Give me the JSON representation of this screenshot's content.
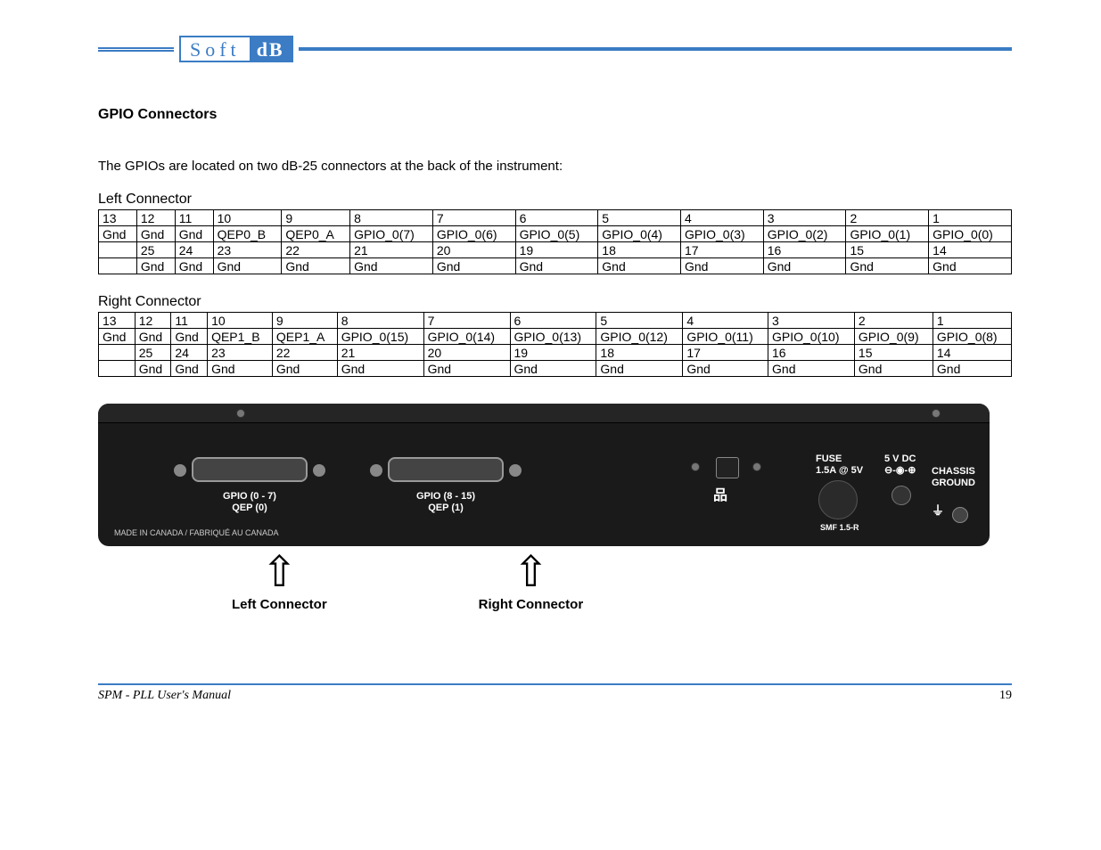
{
  "logo": {
    "left": "Soft",
    "right": "dB",
    "brand_color": "#3b7cc4"
  },
  "section_heading": "GPIO Connectors",
  "intro": "The GPIOs are located on two dB-25 connectors at the back of the instrument:",
  "tables": {
    "left": {
      "title": "Left Connector",
      "rows": [
        [
          "13",
          "12",
          "11",
          "10",
          "9",
          "8",
          "7",
          "6",
          "5",
          "4",
          "3",
          "2",
          "1"
        ],
        [
          "Gnd",
          "Gnd",
          "Gnd",
          "QEP0_B",
          "QEP0_A",
          "GPIO_0(7)",
          "GPIO_0(6)",
          "GPIO_0(5)",
          "GPIO_0(4)",
          "GPIO_0(3)",
          "GPIO_0(2)",
          "GPIO_0(1)",
          "GPIO_0(0)"
        ],
        [
          "",
          "25",
          "24",
          "23",
          "22",
          "21",
          "20",
          "19",
          "18",
          "17",
          "16",
          "15",
          "14"
        ],
        [
          "",
          "Gnd",
          "Gnd",
          "Gnd",
          "Gnd",
          "Gnd",
          "Gnd",
          "Gnd",
          "Gnd",
          "Gnd",
          "Gnd",
          "Gnd",
          "Gnd"
        ]
      ]
    },
    "right": {
      "title": "Right Connector",
      "rows": [
        [
          "13",
          "12",
          "11",
          "10",
          "9",
          "8",
          "7",
          "6",
          "5",
          "4",
          "3",
          "2",
          "1"
        ],
        [
          "Gnd",
          "Gnd",
          "Gnd",
          "QEP1_B",
          "QEP1_A",
          "GPIO_0(15)",
          "GPIO_0(14)",
          "GPIO_0(13)",
          "GPIO_0(12)",
          "GPIO_0(11)",
          "GPIO_0(10)",
          "GPIO_0(9)",
          "GPIO_0(8)"
        ],
        [
          "",
          "25",
          "24",
          "23",
          "22",
          "21",
          "20",
          "19",
          "18",
          "17",
          "16",
          "15",
          "14"
        ],
        [
          "",
          "Gnd",
          "Gnd",
          "Gnd",
          "Gnd",
          "Gnd",
          "Gnd",
          "Gnd",
          "Gnd",
          "Gnd",
          "Gnd",
          "Gnd",
          "Gnd"
        ]
      ]
    }
  },
  "device": {
    "gpio_label_1_line1": "GPIO (0 - 7)",
    "gpio_label_1_line2": "QEP (0)",
    "gpio_label_2_line1": "GPIO (8 - 15)",
    "gpio_label_2_line2": "QEP (1)",
    "fuse_label_1": "FUSE",
    "fuse_label_2": "1.5A @ 5V",
    "fuse_label_3": "SMF 1.5-R",
    "dc_label_1": "5 V DC",
    "dc_label_2": "⊖-◉-⊕",
    "chassis_1": "CHASSIS",
    "chassis_2": "GROUND",
    "made": "MADE IN CANADA / FABRIQUÉ AU CANADA",
    "eth_icon": "品"
  },
  "arrows": {
    "left": "Left Connector",
    "right": "Right Connector"
  },
  "footer": {
    "title": "SPM - PLL User's Manual",
    "page": "19"
  }
}
